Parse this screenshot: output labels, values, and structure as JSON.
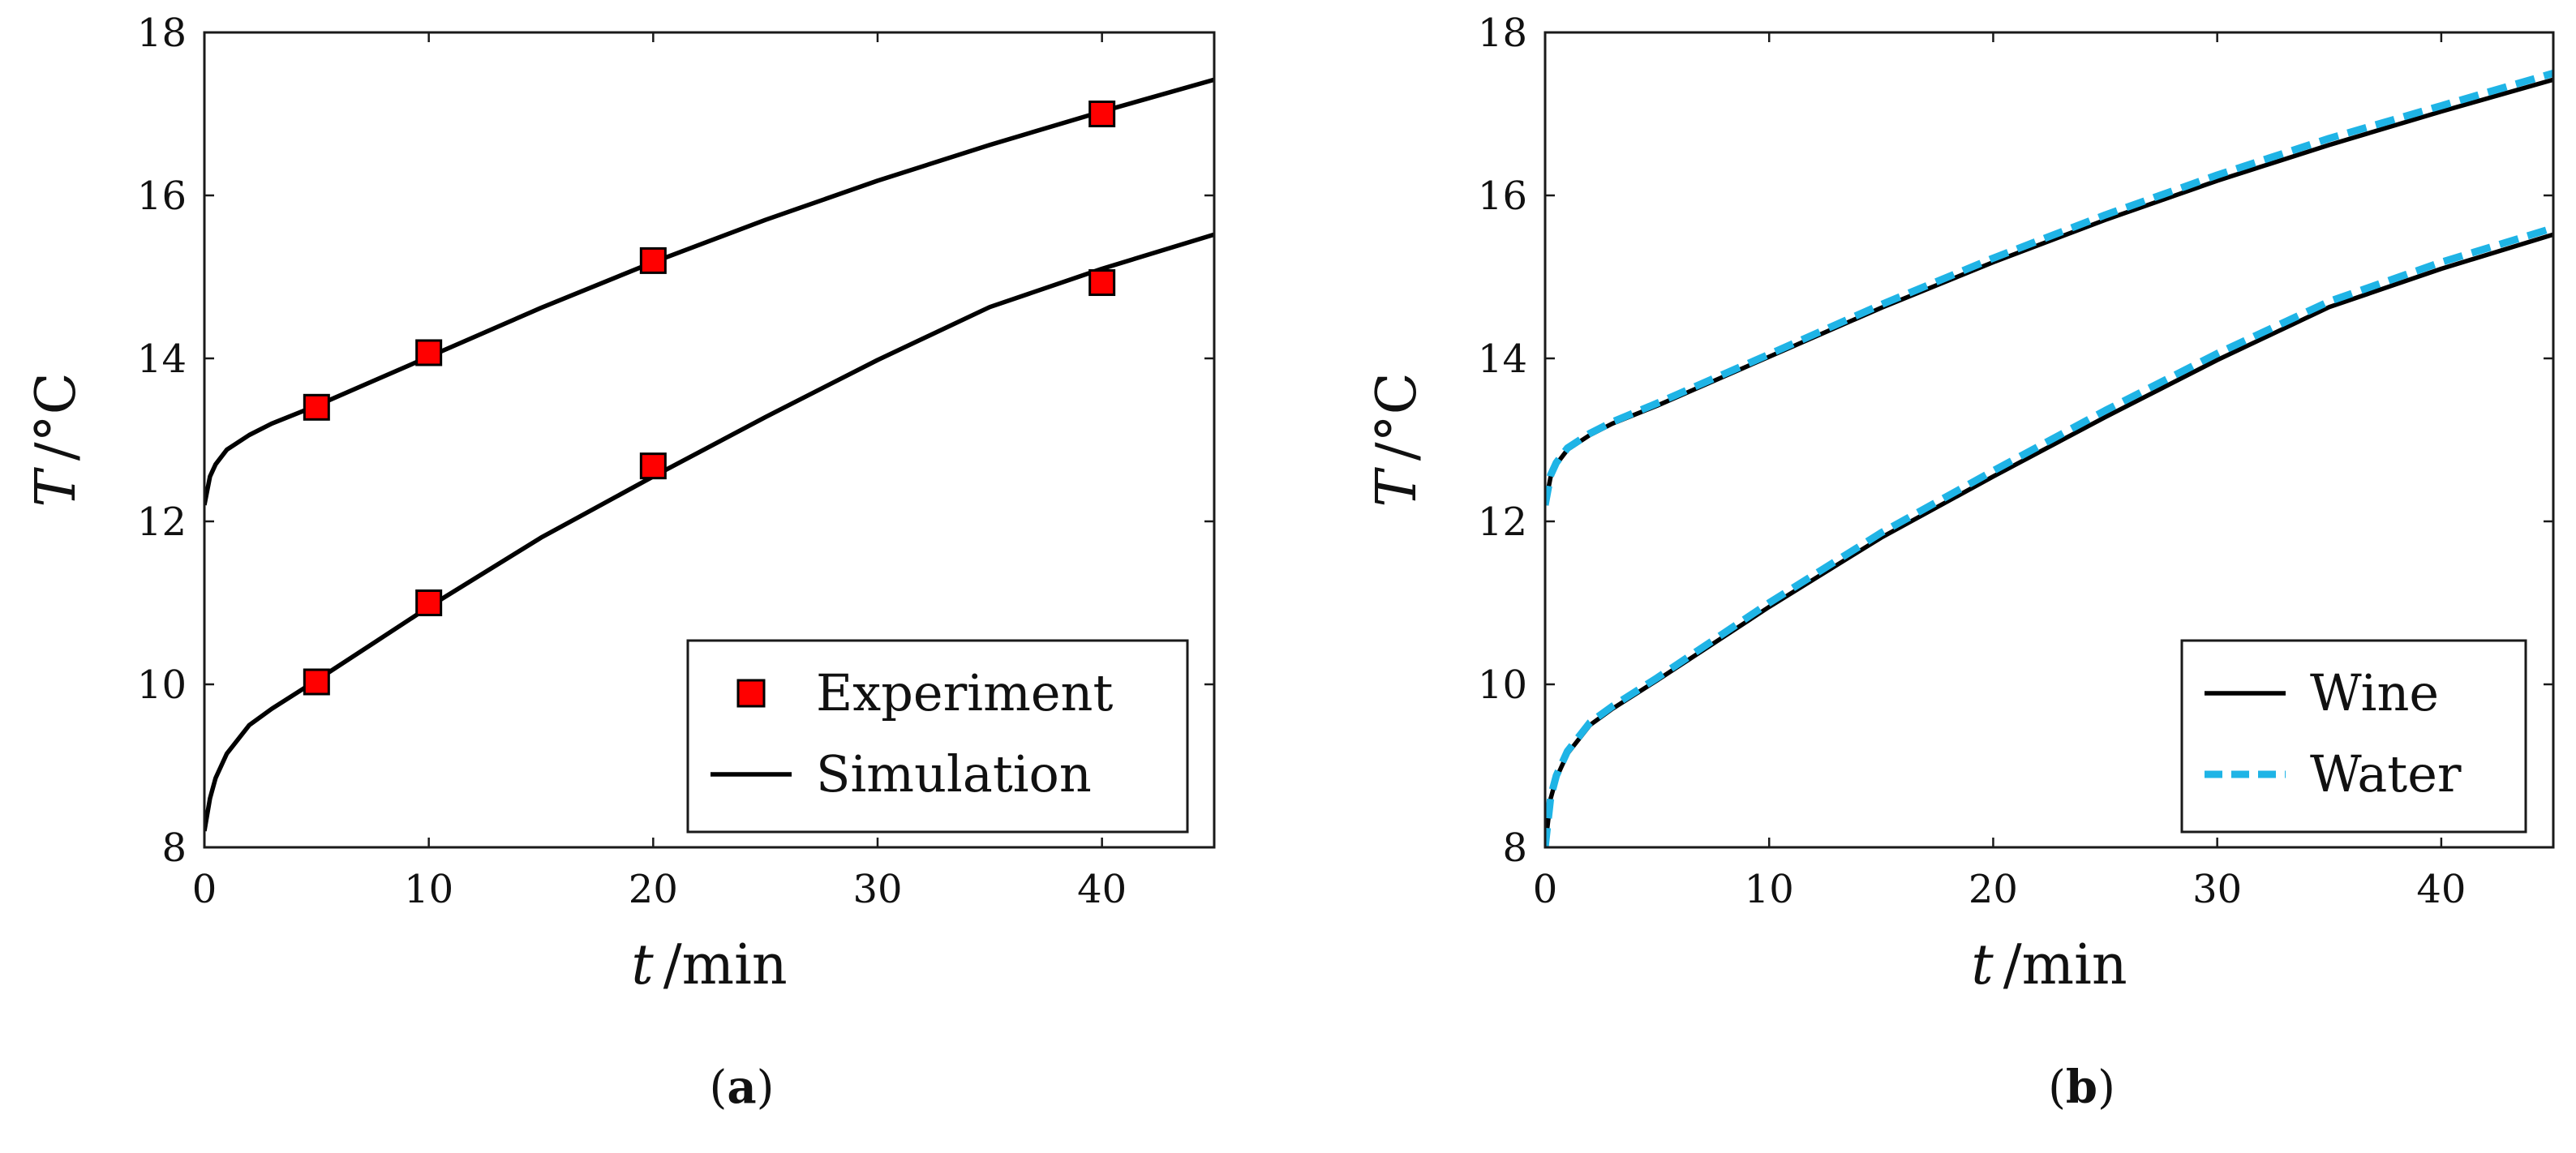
{
  "colors": {
    "simulation": "#000000",
    "experiment": "#ff0000",
    "water": "#1fb4e6",
    "axis": "#1a1a1a"
  },
  "chart_data": [
    {
      "type": "line",
      "panel_label": "a",
      "xlabel": {
        "symbol": "t",
        "unit": "/min"
      },
      "ylabel": {
        "symbol": "T",
        "unit": "/°C"
      },
      "xlim": [
        0,
        45
      ],
      "ylim": [
        8,
        18
      ],
      "xticks": [
        "0",
        "10",
        "20",
        "30",
        "40"
      ],
      "yticks": [
        "8",
        "10",
        "12",
        "14",
        "16",
        "18"
      ],
      "legend_position": "bottom-right",
      "legend": [
        "Experiment",
        "Simulation"
      ],
      "series": [
        {
          "name": "Simulation",
          "style": "solid",
          "color": "#000000",
          "curves": [
            {
              "x": [
                0,
                0.25,
                0.5,
                1,
                2,
                3,
                5,
                7.5,
                10,
                15,
                20,
                25,
                30,
                35,
                40,
                45
              ],
              "y": [
                12.2,
                12.55,
                12.7,
                12.88,
                13.06,
                13.2,
                13.42,
                13.72,
                14.02,
                14.62,
                15.18,
                15.7,
                16.18,
                16.62,
                17.03,
                17.42
              ]
            },
            {
              "x": [
                0,
                0.25,
                0.5,
                1,
                2,
                3,
                5,
                7.5,
                10,
                15,
                20,
                25,
                30,
                35,
                40,
                45
              ],
              "y": [
                8.2,
                8.6,
                8.85,
                9.15,
                9.5,
                9.7,
                10.05,
                10.5,
                10.95,
                11.8,
                12.55,
                13.28,
                13.98,
                14.63,
                15.1,
                15.52
              ]
            }
          ]
        },
        {
          "name": "Experiment",
          "style": "marker-square",
          "color": "#ff0000",
          "points": [
            {
              "x": 5,
              "y": 13.4
            },
            {
              "x": 10,
              "y": 14.07
            },
            {
              "x": 20,
              "y": 15.2
            },
            {
              "x": 40,
              "y": 17.0
            },
            {
              "x": 5,
              "y": 10.03
            },
            {
              "x": 10,
              "y": 11.0
            },
            {
              "x": 20,
              "y": 12.68
            },
            {
              "x": 40,
              "y": 14.93
            }
          ]
        }
      ]
    },
    {
      "type": "line",
      "panel_label": "b",
      "xlabel": {
        "symbol": "t",
        "unit": "/min"
      },
      "ylabel": {
        "symbol": "T",
        "unit": "/°C"
      },
      "xlim": [
        0,
        45
      ],
      "ylim": [
        8,
        18
      ],
      "xticks": [
        "0",
        "10",
        "20",
        "30",
        "40"
      ],
      "yticks": [
        "8",
        "10",
        "12",
        "14",
        "16",
        "18"
      ],
      "legend_position": "bottom-right",
      "legend": [
        "Wine",
        "Water"
      ],
      "series": [
        {
          "name": "Wine",
          "style": "solid",
          "color": "#000000",
          "curves": [
            {
              "x": [
                0,
                0.25,
                0.5,
                1,
                2,
                3,
                5,
                7.5,
                10,
                15,
                20,
                25,
                30,
                35,
                40,
                45
              ],
              "y": [
                12.2,
                12.55,
                12.7,
                12.88,
                13.06,
                13.2,
                13.42,
                13.72,
                14.02,
                14.62,
                15.18,
                15.7,
                16.18,
                16.62,
                17.03,
                17.42
              ]
            },
            {
              "x": [
                0,
                0.25,
                0.5,
                1,
                2,
                3,
                5,
                7.5,
                10,
                15,
                20,
                25,
                30,
                35,
                40,
                45
              ],
              "y": [
                8.0,
                8.6,
                8.85,
                9.15,
                9.5,
                9.7,
                10.05,
                10.5,
                10.95,
                11.8,
                12.55,
                13.28,
                13.98,
                14.63,
                15.1,
                15.52
              ]
            }
          ]
        },
        {
          "name": "Water",
          "style": "dashed",
          "color": "#1fb4e6",
          "curves": [
            {
              "x": [
                0,
                0.25,
                0.5,
                1,
                2,
                3,
                5,
                7.5,
                10,
                15,
                20,
                25,
                30,
                35,
                40,
                45
              ],
              "y": [
                12.2,
                12.57,
                12.72,
                12.9,
                13.08,
                13.22,
                13.45,
                13.75,
                14.05,
                14.66,
                15.23,
                15.76,
                16.25,
                16.7,
                17.1,
                17.5
              ]
            },
            {
              "x": [
                0,
                0.25,
                0.5,
                1,
                2,
                3,
                5,
                7.5,
                10,
                15,
                20,
                25,
                30,
                35,
                40,
                45
              ],
              "y": [
                8.0,
                8.62,
                8.88,
                9.18,
                9.53,
                9.73,
                10.08,
                10.54,
                11.0,
                11.86,
                12.62,
                13.36,
                14.06,
                14.7,
                15.18,
                15.6
              ]
            }
          ]
        }
      ]
    }
  ]
}
